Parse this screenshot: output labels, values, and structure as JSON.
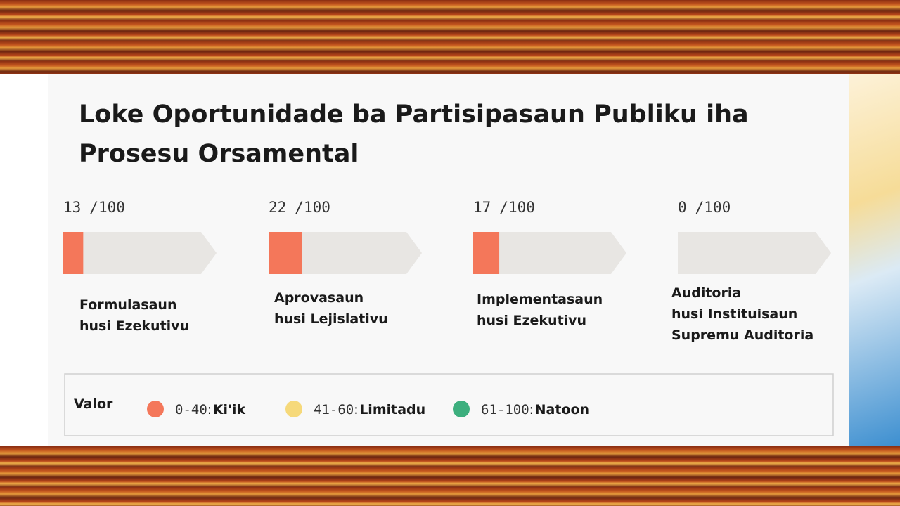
{
  "title": [
    "Loke Oportunidade ba Partisipasaun Publiku iha",
    "Prosesu Orsamental"
  ],
  "scale_max": {
    "value": 100,
    "label": "/100"
  },
  "stages": [
    {
      "score": 13,
      "label": [
        "Formulasaun",
        "husi Ezekutivu"
      ]
    },
    {
      "score": 22,
      "label": [
        "Aprovasaun",
        "husi Lejislativu"
      ]
    },
    {
      "score": 17,
      "label": [
        "Implementasaun",
        "husi Ezekutivu"
      ]
    },
    {
      "score": 0,
      "label": [
        "Auditoria",
        "husi Instituisaun",
        "Supremu Auditoria"
      ]
    }
  ],
  "legend": {
    "title": "Valor",
    "items": [
      {
        "range": "0-40",
        "label": "Ki'ik",
        "color": "#f4775a"
      },
      {
        "range": "41-60",
        "label": "Limitadu",
        "color": "#f6d97a"
      },
      {
        "range": "61-100",
        "label": "Natoon",
        "color": "#3daf7e"
      }
    ]
  }
}
